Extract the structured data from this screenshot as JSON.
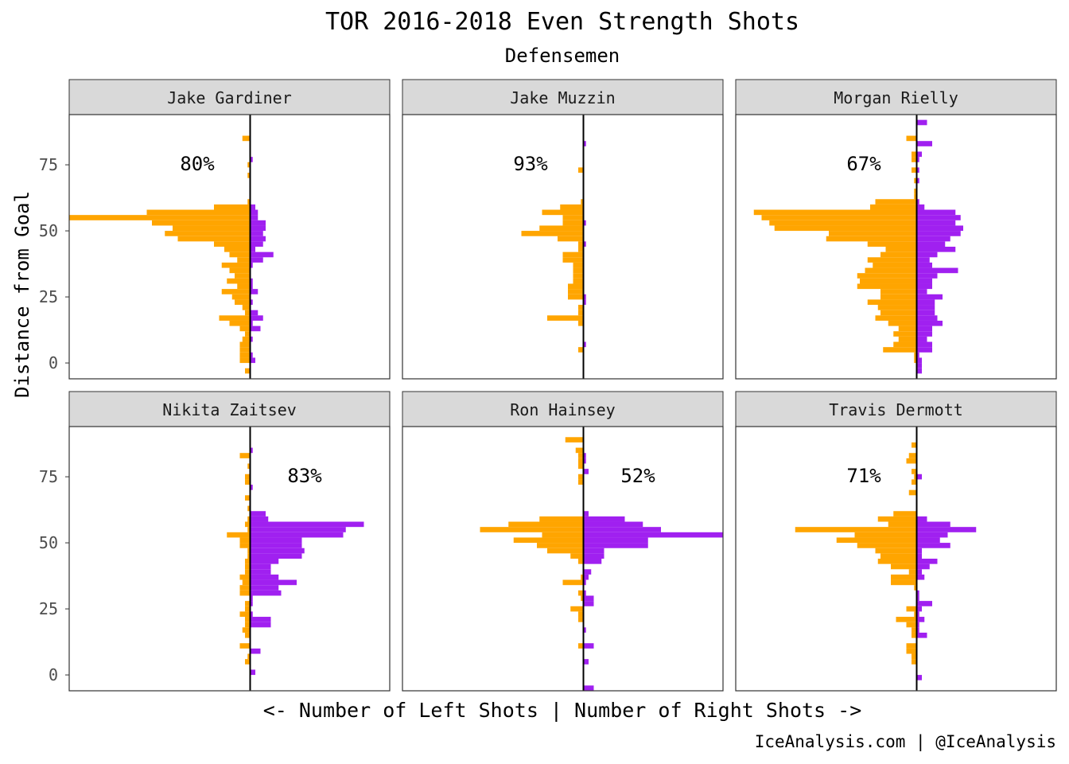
{
  "chart_data": {
    "type": "bar",
    "orientation": "horizontal-back-to-back",
    "title": "TOR 2016-2018 Even Strength Shots",
    "subtitle": "Defensemen",
    "ylabel": "Distance from Goal",
    "xlabel": "<- Number of Left Shots | Number of Right Shots ->",
    "caption": "IceAnalysis.com | @IceAnalysis",
    "yticks": [
      0,
      25,
      50,
      75
    ],
    "ylim": [
      -6,
      94
    ],
    "bin_width": 2,
    "xlim": [
      -70,
      54
    ],
    "colors": {
      "left": "#FFA500",
      "right": "#A020F0",
      "strip": "#D9D9D9",
      "zero_line": "#000000"
    },
    "panels": [
      {
        "name": "Jake Gardiner",
        "pct_label": "80%",
        "label_side": "left",
        "bins": [
          {
            "y": 84,
            "left": 3
          },
          {
            "y": 76,
            "right": 1
          },
          {
            "y": 74,
            "left": 1
          },
          {
            "y": 70,
            "left": 1
          },
          {
            "y": 60,
            "left": 1
          },
          {
            "y": 58,
            "left": 14,
            "right": 2
          },
          {
            "y": 56,
            "left": 40,
            "right": 3
          },
          {
            "y": 54,
            "left": 70,
            "right": 3
          },
          {
            "y": 52,
            "left": 38,
            "right": 6
          },
          {
            "y": 50,
            "left": 30,
            "right": 6
          },
          {
            "y": 48,
            "left": 33,
            "right": 5
          },
          {
            "y": 46,
            "left": 28,
            "right": 6
          },
          {
            "y": 44,
            "left": 14,
            "right": 5
          },
          {
            "y": 42,
            "left": 10,
            "right": 2
          },
          {
            "y": 40,
            "left": 8,
            "right": 9
          },
          {
            "y": 38,
            "left": 5,
            "right": 5
          },
          {
            "y": 36,
            "left": 11,
            "right": 1
          },
          {
            "y": 34,
            "left": 8
          },
          {
            "y": 32,
            "left": 6
          },
          {
            "y": 30,
            "left": 9,
            "right": 1
          },
          {
            "y": 28,
            "left": 5,
            "right": 1
          },
          {
            "y": 26,
            "left": 11,
            "right": 3
          },
          {
            "y": 24,
            "left": 7
          },
          {
            "y": 22,
            "left": 6,
            "right": 1
          },
          {
            "y": 20,
            "left": 3
          },
          {
            "y": 18,
            "left": 2,
            "right": 3
          },
          {
            "y": 16,
            "left": 12,
            "right": 5
          },
          {
            "y": 14,
            "left": 8,
            "right": 1
          },
          {
            "y": 12,
            "left": 4,
            "right": 4
          },
          {
            "y": 10,
            "left": 2
          },
          {
            "y": 8,
            "left": 3,
            "right": 1
          },
          {
            "y": 6,
            "left": 4
          },
          {
            "y": 4,
            "left": 4
          },
          {
            "y": 2,
            "left": 4,
            "right": 1
          },
          {
            "y": 0,
            "left": 4,
            "right": 2
          },
          {
            "y": -4,
            "left": 2
          }
        ]
      },
      {
        "name": "Jake Muzzin",
        "pct_label": "93%",
        "label_side": "left",
        "bins": [
          {
            "y": 82,
            "right": 1
          },
          {
            "y": 72,
            "left": 2
          },
          {
            "y": 60,
            "left": 1
          },
          {
            "y": 58,
            "left": 9
          },
          {
            "y": 56,
            "left": 16
          },
          {
            "y": 54,
            "left": 8
          },
          {
            "y": 52,
            "left": 8,
            "right": 1
          },
          {
            "y": 50,
            "left": 17
          },
          {
            "y": 48,
            "left": 24
          },
          {
            "y": 46,
            "left": 10
          },
          {
            "y": 44,
            "left": 2,
            "right": 1
          },
          {
            "y": 42,
            "left": 2
          },
          {
            "y": 40,
            "left": 8
          },
          {
            "y": 38,
            "left": 8
          },
          {
            "y": 36,
            "left": 4
          },
          {
            "y": 34,
            "left": 4
          },
          {
            "y": 32,
            "left": 4
          },
          {
            "y": 30,
            "left": 4
          },
          {
            "y": 28,
            "left": 6
          },
          {
            "y": 26,
            "left": 6
          },
          {
            "y": 24,
            "left": 6,
            "right": 1
          },
          {
            "y": 22,
            "right": 1
          },
          {
            "y": 20,
            "left": 2
          },
          {
            "y": 18,
            "left": 2
          },
          {
            "y": 16,
            "left": 14
          },
          {
            "y": 14,
            "left": 2
          },
          {
            "y": 6,
            "right": 1
          },
          {
            "y": 4,
            "left": 2
          }
        ]
      },
      {
        "name": "Morgan Rielly",
        "pct_label": "67%",
        "label_side": "left",
        "bins": [
          {
            "y": 90,
            "right": 4
          },
          {
            "y": 84,
            "left": 4
          },
          {
            "y": 82,
            "right": 6
          },
          {
            "y": 78,
            "left": 2,
            "right": 2
          },
          {
            "y": 76,
            "left": 2,
            "right": 1
          },
          {
            "y": 72,
            "left": 2,
            "right": 1
          },
          {
            "y": 68,
            "left": 1,
            "right": 1
          },
          {
            "y": 64,
            "left": 1
          },
          {
            "y": 62,
            "left": 1
          },
          {
            "y": 60,
            "left": 16,
            "right": 1
          },
          {
            "y": 58,
            "left": 18,
            "right": 3
          },
          {
            "y": 56,
            "left": 63,
            "right": 15
          },
          {
            "y": 54,
            "left": 60,
            "right": 17
          },
          {
            "y": 52,
            "left": 57,
            "right": 15
          },
          {
            "y": 50,
            "left": 55,
            "right": 18
          },
          {
            "y": 48,
            "left": 34,
            "right": 17
          },
          {
            "y": 46,
            "left": 35,
            "right": 13
          },
          {
            "y": 44,
            "left": 19,
            "right": 11
          },
          {
            "y": 42,
            "left": 12,
            "right": 15
          },
          {
            "y": 40,
            "left": 14,
            "right": 8
          },
          {
            "y": 38,
            "left": 19,
            "right": 5
          },
          {
            "y": 36,
            "left": 17,
            "right": 6
          },
          {
            "y": 34,
            "left": 20,
            "right": 16
          },
          {
            "y": 32,
            "left": 23,
            "right": 8
          },
          {
            "y": 30,
            "left": 22,
            "right": 6
          },
          {
            "y": 28,
            "left": 23,
            "right": 6
          },
          {
            "y": 26,
            "left": 14,
            "right": 4
          },
          {
            "y": 24,
            "left": 14,
            "right": 10
          },
          {
            "y": 22,
            "left": 19,
            "right": 7
          },
          {
            "y": 20,
            "left": 15,
            "right": 7
          },
          {
            "y": 18,
            "left": 14,
            "right": 7
          },
          {
            "y": 16,
            "left": 16,
            "right": 8
          },
          {
            "y": 14,
            "left": 11,
            "right": 10
          },
          {
            "y": 12,
            "left": 7,
            "right": 6
          },
          {
            "y": 10,
            "left": 9,
            "right": 6
          },
          {
            "y": 8,
            "left": 7,
            "right": 4
          },
          {
            "y": 6,
            "left": 9,
            "right": 6
          },
          {
            "y": 4,
            "left": 13,
            "right": 6
          },
          {
            "y": 2,
            "left": 1,
            "right": 1
          },
          {
            "y": 0,
            "left": 1,
            "right": 2
          },
          {
            "y": -2,
            "right": 2
          },
          {
            "y": -4,
            "right": 2
          }
        ]
      },
      {
        "name": "Nikita Zaitsev",
        "pct_label": "83%",
        "label_side": "right",
        "bins": [
          {
            "y": 84,
            "right": 1
          },
          {
            "y": 82,
            "left": 4
          },
          {
            "y": 78,
            "left": 1
          },
          {
            "y": 74,
            "left": 2
          },
          {
            "y": 72,
            "left": 2
          },
          {
            "y": 70,
            "right": 1
          },
          {
            "y": 66,
            "left": 2
          },
          {
            "y": 62,
            "left": 1
          },
          {
            "y": 60,
            "right": 6
          },
          {
            "y": 58,
            "left": 1,
            "right": 7
          },
          {
            "y": 56,
            "left": 2,
            "right": 44
          },
          {
            "y": 54,
            "left": 1,
            "right": 37
          },
          {
            "y": 52,
            "left": 9,
            "right": 36
          },
          {
            "y": 50,
            "left": 4,
            "right": 20
          },
          {
            "y": 48,
            "left": 4,
            "right": 20
          },
          {
            "y": 46,
            "left": 1,
            "right": 21
          },
          {
            "y": 44,
            "left": 1,
            "right": 20
          },
          {
            "y": 42,
            "left": 2,
            "right": 11
          },
          {
            "y": 40,
            "left": 2,
            "right": 8
          },
          {
            "y": 38,
            "left": 2,
            "right": 8
          },
          {
            "y": 36,
            "left": 4,
            "right": 11
          },
          {
            "y": 34,
            "left": 3,
            "right": 18
          },
          {
            "y": 32,
            "left": 4,
            "right": 11
          },
          {
            "y": 30,
            "left": 4,
            "right": 12
          },
          {
            "y": 28,
            "right": 1
          },
          {
            "y": 26,
            "left": 2,
            "right": 1
          },
          {
            "y": 24,
            "left": 2
          },
          {
            "y": 22,
            "left": 4,
            "right": 1
          },
          {
            "y": 20,
            "left": 2,
            "right": 8
          },
          {
            "y": 18,
            "left": 2,
            "right": 8
          },
          {
            "y": 16,
            "left": 3
          },
          {
            "y": 14,
            "left": 2
          },
          {
            "y": 10,
            "left": 4
          },
          {
            "y": 8,
            "right": 4
          },
          {
            "y": 6,
            "left": 1
          },
          {
            "y": 4,
            "left": 2
          },
          {
            "y": 0,
            "right": 2
          }
        ]
      },
      {
        "name": "Ron Hainsey",
        "pct_label": "52%",
        "label_side": "right",
        "bins": [
          {
            "y": 88,
            "left": 7
          },
          {
            "y": 84,
            "left": 3
          },
          {
            "y": 82,
            "left": 2,
            "right": 1
          },
          {
            "y": 80,
            "left": 2,
            "right": 1
          },
          {
            "y": 78,
            "left": 2
          },
          {
            "y": 76,
            "right": 2
          },
          {
            "y": 74,
            "left": 2
          },
          {
            "y": 72,
            "left": 2
          },
          {
            "y": 60,
            "right": 2
          },
          {
            "y": 58,
            "left": 17,
            "right": 16
          },
          {
            "y": 56,
            "left": 29,
            "right": 23
          },
          {
            "y": 54,
            "left": 40,
            "right": 30
          },
          {
            "y": 52,
            "left": 16,
            "right": 54
          },
          {
            "y": 50,
            "left": 27,
            "right": 25
          },
          {
            "y": 48,
            "left": 18,
            "right": 25
          },
          {
            "y": 46,
            "left": 14,
            "right": 8
          },
          {
            "y": 44,
            "left": 5,
            "right": 8
          },
          {
            "y": 42,
            "left": 2,
            "right": 7
          },
          {
            "y": 38,
            "right": 3
          },
          {
            "y": 36,
            "left": 1,
            "right": 2
          },
          {
            "y": 34,
            "left": 8,
            "right": 1
          },
          {
            "y": 30,
            "left": 2,
            "right": 1
          },
          {
            "y": 28,
            "left": 1,
            "right": 4
          },
          {
            "y": 26,
            "right": 4
          },
          {
            "y": 24,
            "left": 5
          },
          {
            "y": 22,
            "left": 2
          },
          {
            "y": 20,
            "left": 2
          },
          {
            "y": 16,
            "right": 1
          },
          {
            "y": 10,
            "left": 2,
            "right": 4
          },
          {
            "y": 4,
            "right": 2
          },
          {
            "y": -6,
            "right": 4
          }
        ]
      },
      {
        "name": "Travis Dermott",
        "pct_label": "71%",
        "label_side": "left",
        "bins": [
          {
            "y": 86,
            "left": 2
          },
          {
            "y": 82,
            "left": 3
          },
          {
            "y": 80,
            "left": 4
          },
          {
            "y": 76,
            "left": 2
          },
          {
            "y": 74,
            "left": 1,
            "right": 2
          },
          {
            "y": 72,
            "left": 2
          },
          {
            "y": 68,
            "left": 3
          },
          {
            "y": 60,
            "left": 9
          },
          {
            "y": 58,
            "left": 15,
            "right": 4
          },
          {
            "y": 56,
            "left": 11,
            "right": 13
          },
          {
            "y": 54,
            "left": 47,
            "right": 23
          },
          {
            "y": 52,
            "left": 24,
            "right": 12
          },
          {
            "y": 50,
            "left": 31,
            "right": 9
          },
          {
            "y": 48,
            "left": 23,
            "right": 13
          },
          {
            "y": 46,
            "left": 16,
            "right": 2
          },
          {
            "y": 44,
            "left": 14,
            "right": 2
          },
          {
            "y": 42,
            "left": 15,
            "right": 8
          },
          {
            "y": 40,
            "left": 10,
            "right": 5
          },
          {
            "y": 38,
            "left": 3,
            "right": 2
          },
          {
            "y": 36,
            "left": 10,
            "right": 3
          },
          {
            "y": 34,
            "left": 10
          },
          {
            "y": 32,
            "left": 1
          },
          {
            "y": 30,
            "right": 1
          },
          {
            "y": 28,
            "right": 1
          },
          {
            "y": 26,
            "right": 6
          },
          {
            "y": 24,
            "left": 4,
            "right": 2
          },
          {
            "y": 22,
            "left": 1,
            "right": 1
          },
          {
            "y": 20,
            "left": 8,
            "right": 3
          },
          {
            "y": 18,
            "left": 4,
            "right": 1
          },
          {
            "y": 16,
            "left": 2,
            "right": 1
          },
          {
            "y": 14,
            "left": 2,
            "right": 4
          },
          {
            "y": 10,
            "left": 4
          },
          {
            "y": 8,
            "left": 4
          },
          {
            "y": 6,
            "left": 2
          },
          {
            "y": 4,
            "left": 2
          },
          {
            "y": -2,
            "right": 2
          }
        ]
      }
    ]
  }
}
